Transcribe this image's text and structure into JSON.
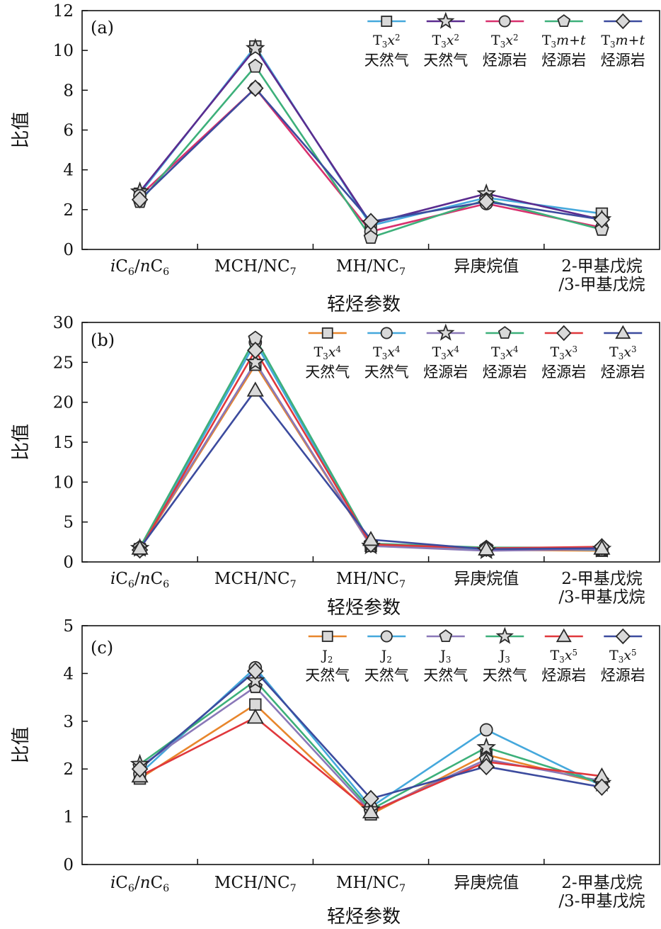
{
  "chart_data": [
    {
      "type": "line",
      "panel_label": "(a)",
      "categories": [
        "iC6/nC6",
        "MCH/NC7",
        "MH/NC7",
        "异庚烷值",
        "2-甲基戊烷/3-甲基戊烷"
      ],
      "category_lines": [
        [
          {
            "t": "i",
            "i": 1
          },
          {
            "t": "C"
          },
          {
            "t": "6",
            "sub": 1
          },
          {
            "t": "/"
          },
          {
            "t": "n",
            "i": 1
          },
          {
            "t": "C"
          },
          {
            "t": "6",
            "sub": 1
          }
        ],
        [
          {
            "t": "MCH/NC"
          },
          {
            "t": "7",
            "sub": 1
          }
        ],
        [
          {
            "t": "MH/NC"
          },
          {
            "t": "7",
            "sub": 1
          }
        ],
        [
          {
            "t": "异庚烷值"
          }
        ],
        [
          {
            "t": "2-甲基戊烷"
          }
        ],
        [
          {
            "t": "/3-甲基戊烷"
          }
        ]
      ],
      "category_line_map": [
        [
          0
        ],
        [
          1
        ],
        [
          2
        ],
        [
          3
        ],
        [
          4,
          5
        ]
      ],
      "ylabel": "比值",
      "xlabel": "轻烃参数",
      "ylim": [
        0,
        12
      ],
      "yticks": [
        0,
        2,
        4,
        6,
        8,
        10,
        12
      ],
      "grid": false,
      "legend_position": "top-right",
      "series": [
        {
          "legend_top": [
            {
              "t": "T"
            },
            {
              "t": "3",
              "sub": 1
            },
            {
              "t": "x",
              "i": 1
            },
            {
              "t": "2",
              "sup": 1
            }
          ],
          "legend_bottom": "天然气",
          "color": "#45a8dc",
          "marker": "square",
          "values": [
            2.8,
            10.2,
            1.2,
            2.6,
            1.8
          ]
        },
        {
          "legend_top": [
            {
              "t": "T"
            },
            {
              "t": "3",
              "sub": 1
            },
            {
              "t": "x",
              "i": 1
            },
            {
              "t": "2",
              "sup": 1
            }
          ],
          "legend_bottom": "天然气",
          "color": "#5b2c8f",
          "marker": "star",
          "values": [
            2.9,
            10.1,
            1.3,
            2.8,
            1.5
          ]
        },
        {
          "legend_top": [
            {
              "t": "T"
            },
            {
              "t": "3",
              "sub": 1
            },
            {
              "t": "x",
              "i": 1
            },
            {
              "t": "2",
              "sup": 1
            }
          ],
          "legend_bottom": "烃源岩",
          "color": "#d8316e",
          "marker": "circle",
          "values": [
            2.7,
            8.1,
            0.9,
            2.3,
            1.1
          ]
        },
        {
          "legend_top": [
            {
              "t": "T"
            },
            {
              "t": "3",
              "sub": 1
            },
            {
              "t": "m+t",
              "i": 1
            }
          ],
          "legend_bottom": "烃源岩",
          "color": "#3db07a",
          "marker": "pentagon",
          "values": [
            2.4,
            9.2,
            0.6,
            2.5,
            1.0
          ]
        },
        {
          "legend_top": [
            {
              "t": "T"
            },
            {
              "t": "3",
              "sub": 1
            },
            {
              "t": "m+t",
              "i": 1
            }
          ],
          "legend_bottom": "烃源岩",
          "color": "#3c4b9e",
          "marker": "diamond",
          "values": [
            2.5,
            8.1,
            1.4,
            2.4,
            1.5
          ]
        }
      ]
    },
    {
      "type": "line",
      "panel_label": "(b)",
      "categories": [
        "iC6/nC6",
        "MCH/NC7",
        "MH/NC7",
        "异庚烷值",
        "2-甲基戊烷/3-甲基戊烷"
      ],
      "category_lines": [
        [
          {
            "t": "i",
            "i": 1
          },
          {
            "t": "C"
          },
          {
            "t": "6",
            "sub": 1
          },
          {
            "t": "/"
          },
          {
            "t": "n",
            "i": 1
          },
          {
            "t": "C"
          },
          {
            "t": "6",
            "sub": 1
          }
        ],
        [
          {
            "t": "MCH/NC"
          },
          {
            "t": "7",
            "sub": 1
          }
        ],
        [
          {
            "t": "MH/NC"
          },
          {
            "t": "7",
            "sub": 1
          }
        ],
        [
          {
            "t": "异庚烷值"
          }
        ],
        [
          {
            "t": "2-甲基戊烷"
          }
        ],
        [
          {
            "t": "/3-甲基戊烷"
          }
        ]
      ],
      "category_line_map": [
        [
          0
        ],
        [
          1
        ],
        [
          2
        ],
        [
          3
        ],
        [
          4,
          5
        ]
      ],
      "ylabel": "比值",
      "xlabel": "轻烃参数",
      "ylim": [
        0,
        30
      ],
      "yticks": [
        0,
        5,
        10,
        15,
        20,
        25,
        30
      ],
      "grid": false,
      "legend_position": "top-right",
      "series": [
        {
          "legend_top": [
            {
              "t": "T"
            },
            {
              "t": "3",
              "sub": 1
            },
            {
              "t": "x",
              "i": 1
            },
            {
              "t": "4",
              "sup": 1
            }
          ],
          "legend_bottom": "天然气",
          "color": "#e8862c",
          "marker": "square",
          "values": [
            1.6,
            24.7,
            2.0,
            1.5,
            1.4
          ]
        },
        {
          "legend_top": [
            {
              "t": "T"
            },
            {
              "t": "3",
              "sub": 1
            },
            {
              "t": "x",
              "i": 1
            },
            {
              "t": "4",
              "sup": 1
            }
          ],
          "legend_bottom": "天然气",
          "color": "#45a8dc",
          "marker": "circle",
          "values": [
            1.5,
            27.5,
            2.1,
            1.6,
            1.5
          ]
        },
        {
          "legend_top": [
            {
              "t": "T"
            },
            {
              "t": "3",
              "sub": 1
            },
            {
              "t": "x",
              "i": 1
            },
            {
              "t": "4",
              "sup": 1
            }
          ],
          "legend_bottom": "烃源岩",
          "color": "#8a78b8",
          "marker": "star",
          "values": [
            1.7,
            25.0,
            2.0,
            1.4,
            1.6
          ]
        },
        {
          "legend_top": [
            {
              "t": "T"
            },
            {
              "t": "3",
              "sub": 1
            },
            {
              "t": "x",
              "i": 1
            },
            {
              "t": "4",
              "sup": 1
            }
          ],
          "legend_bottom": "烃源岩",
          "color": "#3db07a",
          "marker": "pentagon",
          "values": [
            1.8,
            28.0,
            2.3,
            1.8,
            1.8
          ]
        },
        {
          "legend_top": [
            {
              "t": "T"
            },
            {
              "t": "3",
              "sub": 1
            },
            {
              "t": "x",
              "i": 1
            },
            {
              "t": "3",
              "sup": 1
            }
          ],
          "legend_bottom": "烃源岩",
          "color": "#e0383c",
          "marker": "diamond",
          "values": [
            1.5,
            26.5,
            2.2,
            1.7,
            1.9
          ]
        },
        {
          "legend_top": [
            {
              "t": "T"
            },
            {
              "t": "3",
              "sub": 1
            },
            {
              "t": "x",
              "i": 1
            },
            {
              "t": "3",
              "sup": 1
            }
          ],
          "legend_bottom": "烃源岩",
          "color": "#3c4b9e",
          "marker": "triangle",
          "values": [
            1.7,
            21.5,
            2.8,
            1.6,
            1.7
          ]
        }
      ]
    },
    {
      "type": "line",
      "panel_label": "(c)",
      "categories": [
        "iC6/nC6",
        "MCH/NC7",
        "MH/NC7",
        "异庚烷值",
        "2-甲基戊烷/3-甲基戊烷"
      ],
      "category_lines": [
        [
          {
            "t": "i",
            "i": 1
          },
          {
            "t": "C"
          },
          {
            "t": "6",
            "sub": 1
          },
          {
            "t": "/"
          },
          {
            "t": "n",
            "i": 1
          },
          {
            "t": "C"
          },
          {
            "t": "6",
            "sub": 1
          }
        ],
        [
          {
            "t": "MCH/NC"
          },
          {
            "t": "7",
            "sub": 1
          }
        ],
        [
          {
            "t": "MH/NC"
          },
          {
            "t": "7",
            "sub": 1
          }
        ],
        [
          {
            "t": "异庚烷值"
          }
        ],
        [
          {
            "t": "2-甲基戊烷"
          }
        ],
        [
          {
            "t": "/3-甲基戊烷"
          }
        ]
      ],
      "category_line_map": [
        [
          0
        ],
        [
          1
        ],
        [
          2
        ],
        [
          3
        ],
        [
          4,
          5
        ]
      ],
      "ylabel": "比值",
      "xlabel": "轻烃参数",
      "ylim": [
        0,
        5
      ],
      "yticks": [
        0,
        1,
        2,
        3,
        4,
        5
      ],
      "grid": false,
      "legend_position": "top-right",
      "series": [
        {
          "legend_top": [
            {
              "t": "J"
            },
            {
              "t": "2",
              "sub": 1
            }
          ],
          "legend_bottom": "天然气",
          "color": "#e8862c",
          "marker": "square",
          "values": [
            1.8,
            3.35,
            1.05,
            2.3,
            1.7
          ]
        },
        {
          "legend_top": [
            {
              "t": "J"
            },
            {
              "t": "2",
              "sub": 1
            }
          ],
          "legend_bottom": "天然气",
          "color": "#45a8dc",
          "marker": "circle",
          "values": [
            1.9,
            4.12,
            1.2,
            2.82,
            1.65
          ]
        },
        {
          "legend_top": [
            {
              "t": "J"
            },
            {
              "t": "3",
              "sub": 1
            }
          ],
          "legend_bottom": "天然气",
          "color": "#8a78b8",
          "marker": "pentagon",
          "values": [
            2.05,
            3.72,
            1.1,
            2.2,
            1.75
          ]
        },
        {
          "legend_top": [
            {
              "t": "J"
            },
            {
              "t": "3",
              "sub": 1
            }
          ],
          "legend_bottom": "天然气",
          "color": "#3db07a",
          "marker": "star",
          "values": [
            2.1,
            3.85,
            1.15,
            2.45,
            1.7
          ]
        },
        {
          "legend_top": [
            {
              "t": "T"
            },
            {
              "t": "3",
              "sub": 1
            },
            {
              "t": "x",
              "i": 1
            },
            {
              "t": "5",
              "sup": 1
            }
          ],
          "legend_bottom": "烃源岩",
          "color": "#e0383c",
          "marker": "triangle",
          "values": [
            1.85,
            3.08,
            1.1,
            2.15,
            1.85
          ]
        },
        {
          "legend_top": [
            {
              "t": "T"
            },
            {
              "t": "3",
              "sub": 1
            },
            {
              "t": "x",
              "i": 1
            },
            {
              "t": "5",
              "sup": 1
            }
          ],
          "legend_bottom": "烃源岩",
          "color": "#3c4b9e",
          "marker": "diamond",
          "values": [
            2.0,
            4.05,
            1.38,
            2.05,
            1.62
          ]
        }
      ]
    }
  ]
}
